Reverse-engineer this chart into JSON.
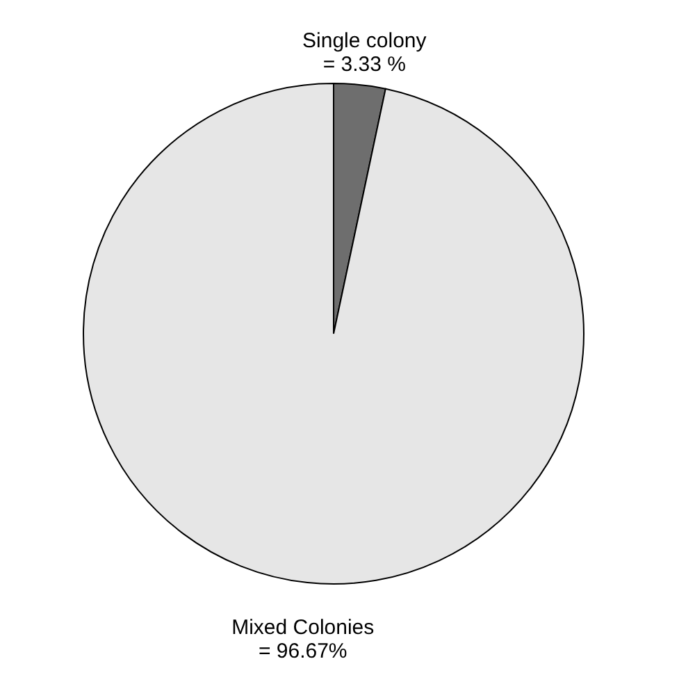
{
  "chart_data": {
    "type": "pie",
    "categories": [
      "Single colony",
      "Mixed Colonies"
    ],
    "values": [
      3.33,
      96.67
    ],
    "value_labels": [
      "= 3.33 %",
      "= 96.67%"
    ],
    "colors": [
      "#6e6e6e",
      "#e6e6e6"
    ],
    "legend": false
  }
}
